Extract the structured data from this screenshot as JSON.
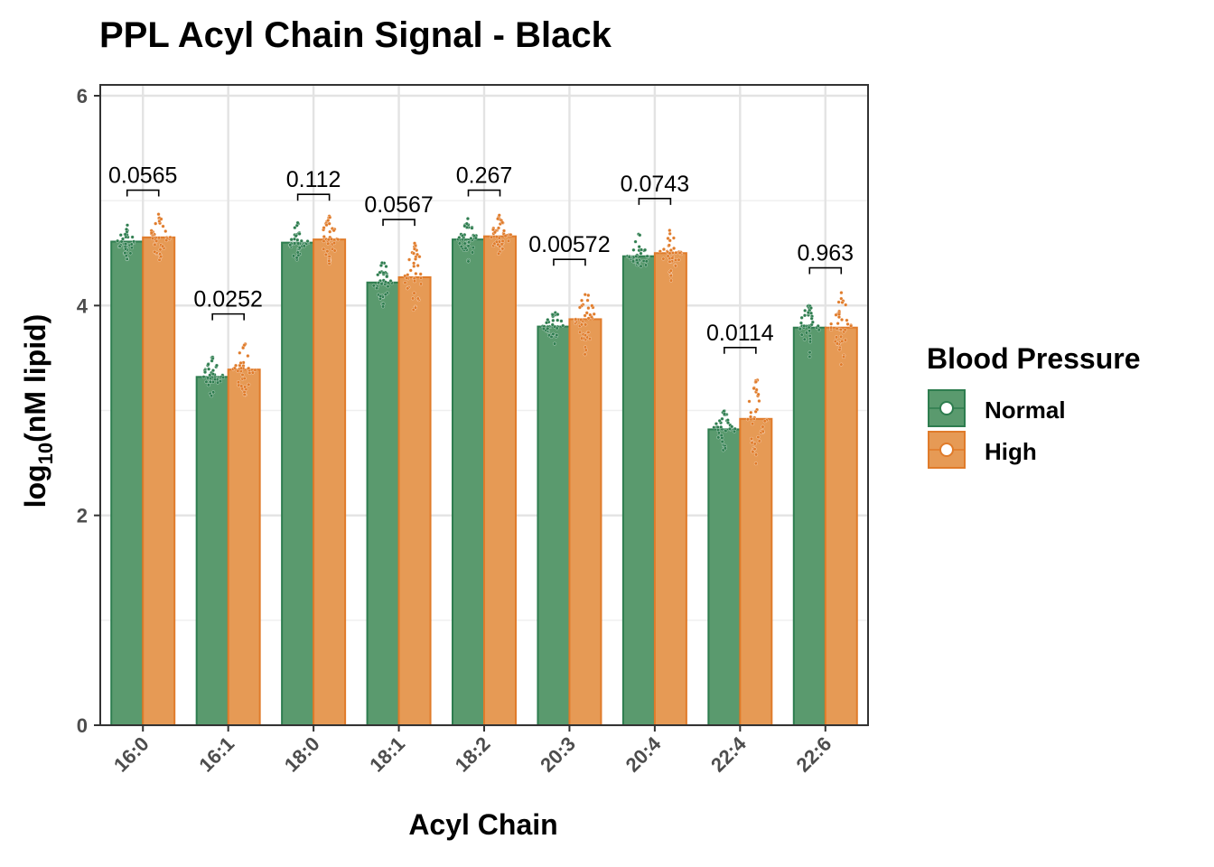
{
  "chart_data": {
    "type": "bar",
    "title": "PPL Acyl Chain Signal - Black",
    "xlabel": "Acyl Chain",
    "ylabel_base": "log",
    "ylabel_sub": "10",
    "ylabel_rest": "(nM lipid)",
    "categories": [
      "16:0",
      "16:1",
      "18:0",
      "18:1",
      "18:2",
      "20:3",
      "20:4",
      "22:4",
      "22:6"
    ],
    "series": [
      {
        "name": "Normal",
        "color": "#2e7d4f",
        "fill": "#5a9a6e",
        "values": [
          4.61,
          3.32,
          4.6,
          4.22,
          4.63,
          3.8,
          4.47,
          2.82,
          3.79
        ]
      },
      {
        "name": "High",
        "color": "#e07b2a",
        "fill": "#e69a55",
        "values": [
          4.65,
          3.39,
          4.63,
          4.27,
          4.66,
          3.87,
          4.5,
          2.92,
          3.79
        ]
      }
    ],
    "point_spread": {
      "Normal": [
        [
          4.45,
          4.78
        ],
        [
          3.12,
          3.55
        ],
        [
          4.4,
          4.7
        ],
        [
          4.0,
          4.45
        ],
        [
          4.42,
          4.8
        ],
        [
          3.62,
          3.98
        ],
        [
          4.25,
          4.55
        ],
        [
          2.6,
          3.0
        ],
        [
          3.5,
          3.96
        ]
      ],
      "High": [
        [
          4.45,
          4.88
        ],
        [
          3.15,
          3.67
        ],
        [
          4.4,
          4.85
        ],
        [
          3.9,
          4.6
        ],
        [
          4.48,
          4.88
        ],
        [
          3.6,
          4.22
        ],
        [
          4.3,
          4.78
        ],
        [
          2.55,
          3.37
        ],
        [
          3.55,
          4.15
        ]
      ]
    },
    "pvalues": [
      "0.0565",
      "0.0252",
      "0.112",
      "0.0567",
      "0.267",
      "0.00572",
      "0.0743",
      "0.0114",
      "0.963"
    ],
    "pvalue_bracket_y": [
      5.1,
      3.92,
      5.06,
      4.82,
      5.1,
      4.44,
      5.02,
      3.6,
      4.36
    ],
    "ylim": [
      0,
      6
    ],
    "yticks": [
      0,
      2,
      4,
      6
    ],
    "grid": true,
    "legend": {
      "title": "Blood Pressure",
      "position": "right",
      "items": [
        "Normal",
        "High"
      ]
    }
  }
}
